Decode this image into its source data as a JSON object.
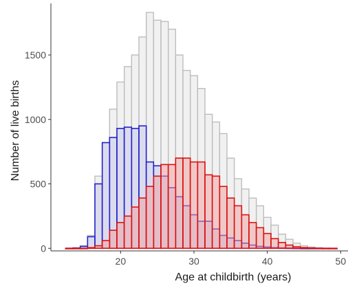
{
  "chart_data": {
    "type": "bar",
    "title": "",
    "xlabel": "Age at childbirth (years)",
    "ylabel": "Number of live births",
    "xlim": [
      10.5,
      51
    ],
    "ylim": [
      -20,
      1900
    ],
    "x_ticks": [
      20,
      30,
      40,
      50
    ],
    "y_ticks": [
      0,
      500,
      1000,
      1500
    ],
    "x": [
      13,
      14,
      15,
      16,
      17,
      18,
      19,
      20,
      21,
      22,
      23,
      24,
      25,
      26,
      27,
      28,
      29,
      30,
      31,
      32,
      33,
      34,
      35,
      36,
      37,
      38,
      39,
      40,
      41,
      42,
      43,
      44,
      45,
      46,
      47,
      48,
      49
    ],
    "series": [
      {
        "name": "",
        "fill": "#e8e8e8",
        "stroke": "#bdbdbd",
        "values": [
          2,
          5,
          20,
          100,
          560,
          820,
          1080,
          1290,
          1410,
          1500,
          1640,
          1830,
          1770,
          1760,
          1700,
          1500,
          1380,
          1340,
          1240,
          1040,
          980,
          890,
          700,
          540,
          460,
          390,
          330,
          240,
          180,
          110,
          70,
          40,
          20,
          10,
          5,
          2,
          1
        ]
      },
      {
        "name": "",
        "fill": "#c6c6ec",
        "stroke": "#2222cc",
        "values": [
          0,
          2,
          15,
          90,
          500,
          820,
          860,
          930,
          940,
          930,
          950,
          670,
          640,
          560,
          470,
          400,
          330,
          260,
          210,
          210,
          150,
          100,
          80,
          60,
          40,
          25,
          15,
          10,
          5,
          3,
          2,
          1,
          0,
          0,
          0,
          0,
          0
        ]
      },
      {
        "name": "",
        "fill": "#f0a0a0",
        "stroke": "#dd1111",
        "values": [
          0,
          0,
          0,
          5,
          20,
          60,
          140,
          200,
          250,
          320,
          390,
          480,
          560,
          650,
          650,
          700,
          700,
          670,
          670,
          570,
          560,
          480,
          390,
          330,
          260,
          200,
          160,
          115,
          75,
          45,
          25,
          12,
          6,
          3,
          1,
          0,
          0
        ]
      }
    ]
  }
}
